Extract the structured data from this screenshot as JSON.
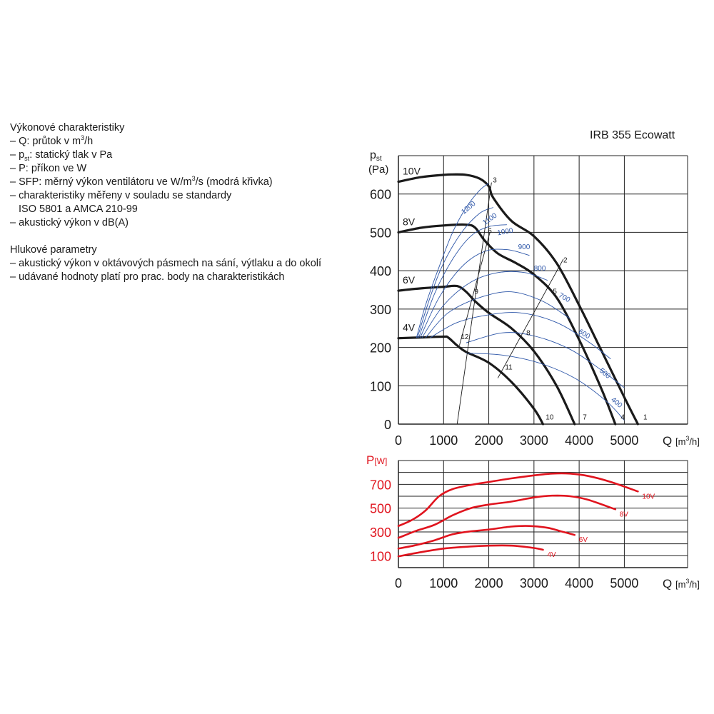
{
  "text": {
    "perf_heading": "Výkonové charakteristiky",
    "perf_items": [
      {
        "pre": "– Q: průtok v m",
        "sup": "3",
        "post": "/h"
      },
      {
        "pre": "– p",
        "sub": "st",
        "post": ": statický tlak v Pa"
      },
      {
        "pre": "– P: příkon ve W"
      },
      {
        "pre": "– SFP: měrný výkon ventilátoru ve W/m",
        "sup": "3",
        "post": "/s (modrá křivka)"
      },
      {
        "pre": "– charakteristiky měřeny v souladu se standardy"
      },
      {
        "pre": "ISO 5801 a AMCA 210-99",
        "indent": true
      },
      {
        "pre": "– akustický výkon v dB(A)"
      }
    ],
    "noise_heading": "Hlukové parametry",
    "noise_items": [
      {
        "pre": "– akustický výkon v oktávových pásmech na sání, výtlaku a do okolí"
      },
      {
        "pre": "– udávané hodnoty platí pro prac. body na charakteristikách"
      }
    ]
  },
  "chart_title": "IRB 355 Ecowatt",
  "colors": {
    "pressure_curve": "#1a1a1a",
    "sfp_curve": "#2d56a8",
    "power_curve": "#e0141e",
    "grid": "#222222"
  },
  "chart_data": [
    {
      "type": "line",
      "title": "IRB 355 Ecowatt",
      "ylabel_main": "p",
      "ylabel_sub": "st",
      "ylabel_unit": "(Pa)",
      "xlabel": "Q",
      "xlabel_unit_pre": "[m",
      "xlabel_unit_sup": "3",
      "xlabel_unit_post": "/h]",
      "xlim": [
        0,
        6400
      ],
      "ylim": [
        0,
        700
      ],
      "xticks": [
        0,
        1000,
        2000,
        3000,
        4000,
        5000
      ],
      "yticks": [
        0,
        100,
        200,
        300,
        400,
        500,
        600
      ],
      "grid": true,
      "series": [
        {
          "name": "10V",
          "kind": "pressure",
          "x": [
            0,
            500,
            1000,
            1200,
            1500,
            1800,
            2000,
            2100,
            2500,
            3000,
            3500,
            4000,
            4500,
            5000,
            5300
          ],
          "y": [
            632,
            644,
            650,
            651,
            650,
            640,
            620,
            590,
            530,
            490,
            420,
            310,
            190,
            70,
            0
          ]
        },
        {
          "name": "8V",
          "kind": "pressure",
          "x": [
            0,
            500,
            1000,
            1500,
            1700,
            1900,
            2200,
            2600,
            3000,
            3500,
            4000,
            4500,
            4800
          ],
          "y": [
            500,
            512,
            518,
            520,
            512,
            480,
            445,
            420,
            390,
            330,
            220,
            90,
            0
          ]
        },
        {
          "name": "6V",
          "kind": "pressure",
          "x": [
            0,
            500,
            1000,
            1300,
            1500,
            1700,
            2000,
            2500,
            3000,
            3500,
            3900
          ],
          "y": [
            348,
            354,
            358,
            360,
            345,
            320,
            290,
            250,
            190,
            100,
            0
          ]
        },
        {
          "name": "4V",
          "kind": "pressure",
          "x": [
            0,
            500,
            1000,
            1100,
            1300,
            1500,
            2000,
            2500,
            3000,
            3200
          ],
          "y": [
            224,
            226,
            228,
            226,
            205,
            188,
            160,
            110,
            40,
            0
          ]
        },
        {
          "name": "1200",
          "kind": "sfp",
          "x": [
            400,
            600,
            900,
            1200,
            1500,
            1800,
            2000
          ],
          "y": [
            225,
            310,
            410,
            500,
            565,
            610,
            628
          ]
        },
        {
          "name": "1100",
          "kind": "sfp",
          "x": [
            420,
            700,
            1000,
            1400,
            1800,
            2100
          ],
          "y": [
            225,
            330,
            420,
            500,
            550,
            565
          ]
        },
        {
          "name": "1000",
          "kind": "sfp",
          "x": [
            450,
            800,
            1200,
            1600,
            2000,
            2400
          ],
          "y": [
            225,
            340,
            430,
            490,
            515,
            520
          ]
        },
        {
          "name": "900",
          "kind": "sfp",
          "x": [
            480,
            900,
            1400,
            1900,
            2400,
            2900
          ],
          "y": [
            225,
            330,
            410,
            450,
            455,
            440
          ]
        },
        {
          "name": "800",
          "kind": "sfp",
          "x": [
            520,
            1000,
            1600,
            2200,
            2800,
            3300
          ],
          "y": [
            225,
            310,
            370,
            395,
            395,
            375
          ]
        },
        {
          "name": "700",
          "kind": "sfp",
          "x": [
            600,
            1100,
            1800,
            2500,
            3200,
            3800
          ],
          "y": [
            225,
            290,
            330,
            345,
            320,
            275
          ]
        },
        {
          "name": "600",
          "kind": "sfp",
          "x": [
            700,
            1300,
            2000,
            2700,
            3500,
            4200,
            4700
          ],
          "y": [
            225,
            265,
            285,
            290,
            265,
            215,
            170
          ]
        },
        {
          "name": "500",
          "kind": "sfp",
          "x": [
            1500,
            2300,
            3000,
            3800,
            4500,
            5000
          ],
          "y": [
            212,
            238,
            230,
            195,
            140,
            95
          ]
        },
        {
          "name": "400",
          "kind": "sfp",
          "x": [
            1500,
            2300,
            3100,
            3900,
            4600,
            5000
          ],
          "y": [
            185,
            180,
            160,
            120,
            60,
            10
          ]
        },
        {
          "name": "system-line-3-1",
          "kind": "system",
          "x": [
            1300,
            2060
          ],
          "y": [
            0,
            630
          ]
        },
        {
          "name": "system-line-6-4",
          "kind": "system",
          "x": [
            1350,
            2020
          ],
          "y": [
            205,
            498
          ]
        },
        {
          "name": "system-line-2-11",
          "kind": "system",
          "x": [
            2200,
            3650
          ],
          "y": [
            120,
            430
          ]
        }
      ],
      "point_labels": [
        {
          "label": "1",
          "x": 5420,
          "y": 12
        },
        {
          "label": "2",
          "x": 3650,
          "y": 422
        },
        {
          "label": "3",
          "x": 2090,
          "y": 630
        },
        {
          "label": "4",
          "x": 4920,
          "y": 12
        },
        {
          "label": "5",
          "x": 3420,
          "y": 340
        },
        {
          "label": "6",
          "x": 1980,
          "y": 498
        },
        {
          "label": "7",
          "x": 4080,
          "y": 12
        },
        {
          "label": "8",
          "x": 2830,
          "y": 232
        },
        {
          "label": "9",
          "x": 1680,
          "y": 340
        },
        {
          "label": "10",
          "x": 3260,
          "y": 12
        },
        {
          "label": "11",
          "x": 2360,
          "y": 142
        },
        {
          "label": "12",
          "x": 1380,
          "y": 222
        }
      ],
      "sfp_label_positions": [
        {
          "label": "1200",
          "x": 1580,
          "y": 560,
          "angle": -40
        },
        {
          "label": "1100",
          "x": 2050,
          "y": 530,
          "angle": -35
        },
        {
          "label": "1000",
          "x": 2370,
          "y": 496,
          "angle": -10
        },
        {
          "label": "900",
          "x": 2780,
          "y": 456,
          "angle": 0
        },
        {
          "label": "800",
          "x": 3130,
          "y": 400,
          "angle": 0
        },
        {
          "label": "700",
          "x": 3650,
          "y": 325,
          "angle": 30
        },
        {
          "label": "600",
          "x": 4090,
          "y": 230,
          "angle": 30
        },
        {
          "label": "500",
          "x": 4540,
          "y": 128,
          "angle": 40
        },
        {
          "label": "400",
          "x": 4800,
          "y": 52,
          "angle": 40
        }
      ]
    },
    {
      "type": "line",
      "ylabel": "P",
      "ylabel_unit": "[W]",
      "xlabel": "Q",
      "xlabel_unit_pre": "[m",
      "xlabel_unit_sup": "3",
      "xlabel_unit_post": "/h]",
      "xlim": [
        0,
        6400
      ],
      "ylim": [
        0,
        900
      ],
      "xticks": [
        0,
        1000,
        2000,
        3000,
        4000,
        5000
      ],
      "yticks": [
        100,
        300,
        500,
        700
      ],
      "grid": true,
      "series": [
        {
          "name": "10V",
          "x": [
            0,
            300,
            600,
            900,
            1200,
            1600,
            2000,
            2500,
            3000,
            3400,
            3800,
            4200,
            4700,
            5300
          ],
          "y": [
            350,
            400,
            480,
            600,
            660,
            695,
            720,
            750,
            775,
            790,
            790,
            770,
            720,
            640
          ]
        },
        {
          "name": "8V",
          "x": [
            0,
            400,
            800,
            1200,
            1600,
            2000,
            2500,
            3000,
            3400,
            3800,
            4200,
            4800
          ],
          "y": [
            250,
            310,
            360,
            440,
            500,
            530,
            555,
            590,
            605,
            600,
            570,
            490
          ]
        },
        {
          "name": "6V",
          "x": [
            0,
            400,
            800,
            1200,
            1600,
            2000,
            2500,
            2900,
            3300,
            3600,
            3900
          ],
          "y": [
            160,
            190,
            230,
            280,
            305,
            320,
            345,
            350,
            335,
            305,
            275
          ]
        },
        {
          "name": "4V",
          "x": [
            0,
            500,
            1000,
            1500,
            2000,
            2500,
            3000,
            3200
          ],
          "y": [
            95,
            130,
            160,
            175,
            185,
            185,
            165,
            150
          ]
        }
      ]
    }
  ]
}
